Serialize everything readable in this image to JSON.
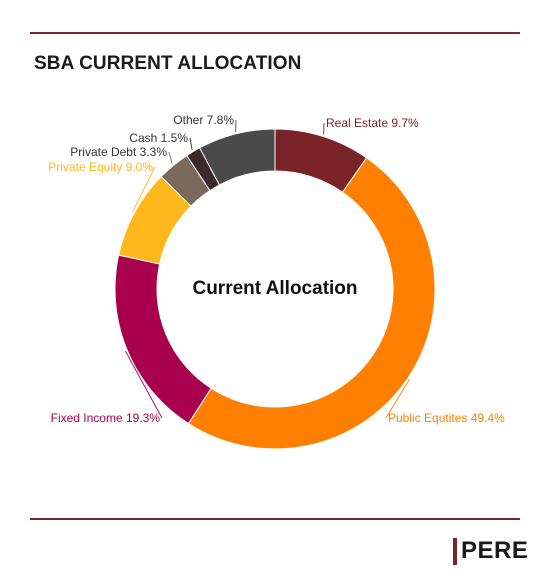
{
  "header": {
    "title": "SBA CURRENT ALLOCATION"
  },
  "brand": {
    "name": "PERE",
    "accent_color": "#7a2328"
  },
  "chart_data": {
    "type": "pie",
    "style": "donut",
    "center_label": "Current Allocation",
    "slices": [
      {
        "label": "Real Estate",
        "value": 9.7,
        "display": "Real Estate 9.7%",
        "color": "#7a2328"
      },
      {
        "label": "Public Equtites",
        "value": 49.4,
        "display": "Public Equtites 49.4%",
        "color": "#ff8000"
      },
      {
        "label": "Fixed Income",
        "value": 19.3,
        "display": "Fixed Income 19.3%",
        "color": "#a8004f"
      },
      {
        "label": "Private Equity",
        "value": 9.0,
        "display": "Private Equity 9.0%",
        "color": "#ffb81c"
      },
      {
        "label": "Private Debt",
        "value": 3.3,
        "display": "Private Debt 3.3%",
        "color": "#7a6a5c"
      },
      {
        "label": "Cash",
        "value": 1.5,
        "display": "Cash 1.5%",
        "color": "#3a2a2a"
      },
      {
        "label": "Other",
        "value": 7.8,
        "display": "Other 7.8%",
        "color": "#4a4a4a"
      }
    ]
  }
}
